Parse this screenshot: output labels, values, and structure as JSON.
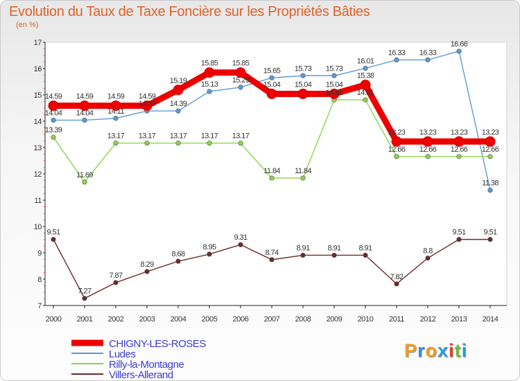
{
  "title": "Evolution du Taux de Taxe Foncière sur les Propriétés Bâties",
  "subtitle": "(en %)",
  "logo": {
    "text": "Proxiti",
    "letter_colors": [
      "#f39a1e",
      "#3b8fd6",
      "#f39a1e",
      "#2b9cd8",
      "#e23a2c",
      "#6fbf3b",
      "#2b9cd8"
    ]
  },
  "chart_data": {
    "type": "line",
    "title": "Evolution du Taux de Taxe Foncière sur les Propriétés Bâties",
    "ylabel": "(en %)",
    "ylim": [
      7,
      17
    ],
    "yticks": [
      7,
      8,
      9,
      10,
      11,
      12,
      13,
      14,
      15,
      16,
      17
    ],
    "x": [
      2000,
      2001,
      2002,
      2003,
      2004,
      2005,
      2006,
      2007,
      2008,
      2009,
      2010,
      2011,
      2012,
      2013,
      2014
    ],
    "series": [
      {
        "name": "CHIGNY-LES-ROSES",
        "color": "#ee0000",
        "bold": true,
        "values": [
          14.59,
          14.59,
          14.59,
          14.59,
          15.19,
          15.85,
          15.85,
          15.04,
          15.04,
          15.04,
          15.38,
          13.23,
          13.23,
          13.23,
          13.23
        ],
        "labels": [
          "14.59",
          "14.59",
          "14.59",
          "14.59",
          "15.19",
          "15.85",
          "15.85",
          "15.04",
          "15.04",
          "15.04",
          "15.38",
          "13.23",
          "13.23",
          "13.23",
          "13.23"
        ]
      },
      {
        "name": "Ludes",
        "color": "#5b9bd5",
        "values": [
          14.04,
          14.04,
          14.11,
          14.39,
          14.39,
          15.13,
          15.29,
          15.65,
          15.73,
          15.73,
          16.01,
          16.33,
          16.33,
          16.66,
          11.38
        ],
        "labels": [
          "14.04",
          "14.04",
          "14.11",
          "14.39",
          "14.39",
          "15.13",
          "15.29",
          "15.65",
          "15.73",
          "15.73",
          "16.01",
          "16.33",
          "16.33",
          "16.66",
          "11.38"
        ]
      },
      {
        "name": "Rilly-la-Montagne",
        "color": "#8ed24b",
        "values": [
          13.39,
          11.69,
          13.17,
          13.17,
          13.17,
          13.17,
          13.17,
          11.84,
          11.84,
          14.81,
          14.81,
          12.66,
          12.66,
          12.66,
          12.66
        ],
        "labels": [
          "13.39",
          "11.69",
          "13.17",
          "13.17",
          "13.17",
          "13.17",
          "13.17",
          "11.84",
          "11.84",
          "14.81",
          "14.81",
          "12.66",
          "12.66",
          "12.66",
          "12.66"
        ]
      },
      {
        "name": "Villers-Allerand",
        "color": "#6b2b2b",
        "values": [
          9.51,
          7.27,
          7.87,
          8.29,
          8.68,
          8.95,
          9.31,
          8.74,
          8.91,
          8.91,
          8.91,
          7.82,
          8.8,
          9.51,
          9.51
        ],
        "labels": [
          "9.51",
          "7.27",
          "7.87",
          "8.29",
          "8.68",
          "8.95",
          "9.31",
          "8.74",
          "8.91",
          "8.91",
          "8.91",
          "7.82",
          "8.8",
          "9.51",
          "9.51"
        ]
      }
    ],
    "legend_position": "bottom-left"
  }
}
